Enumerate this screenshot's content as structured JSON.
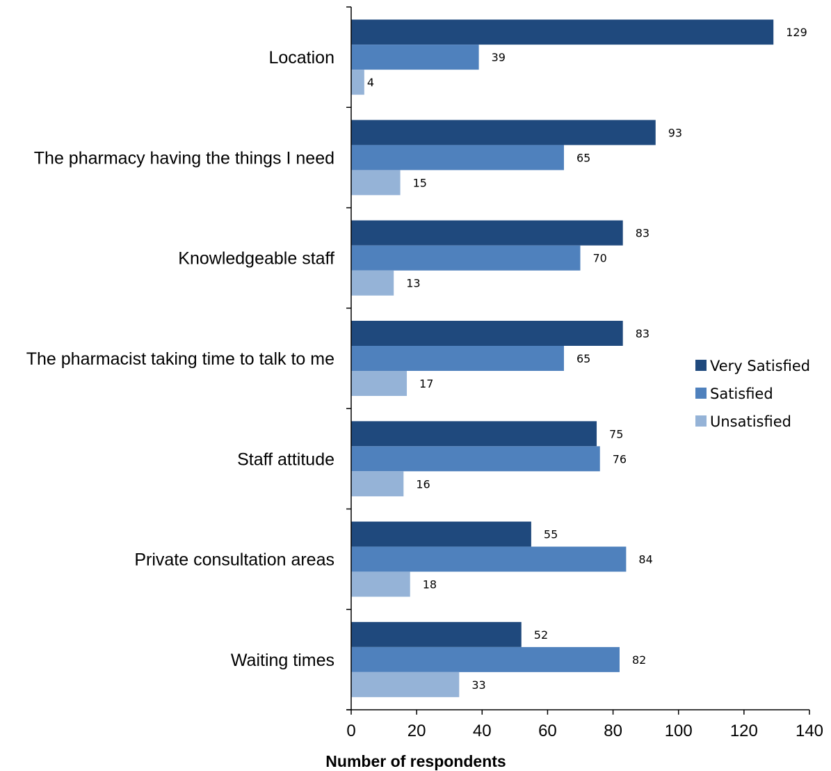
{
  "chart_data": {
    "type": "bar",
    "orientation": "horizontal",
    "categories": [
      "Location",
      "The pharmacy having the things I need",
      "Knowledgeable staff",
      "The pharmacist taking time to talk to me",
      "Staff attitude",
      "Private consultation areas",
      "Waiting times"
    ],
    "series": [
      {
        "name": "Very Satisfied",
        "color": "#1F497D",
        "values": [
          129,
          93,
          83,
          83,
          75,
          55,
          52
        ]
      },
      {
        "name": "Satisfied",
        "color": "#4F81BD",
        "values": [
          39,
          65,
          70,
          65,
          76,
          84,
          82
        ]
      },
      {
        "name": "Unsatisfied",
        "color": "#95B3D7",
        "values": [
          4,
          15,
          13,
          17,
          16,
          18,
          33
        ]
      }
    ],
    "xlabel": "Number of respondents",
    "ylabel": "",
    "xlim": [
      0,
      140
    ],
    "xticks": [
      0,
      20,
      40,
      60,
      80,
      100,
      120,
      140
    ],
    "data_labels": true,
    "grid": false,
    "legend_position": "right"
  }
}
